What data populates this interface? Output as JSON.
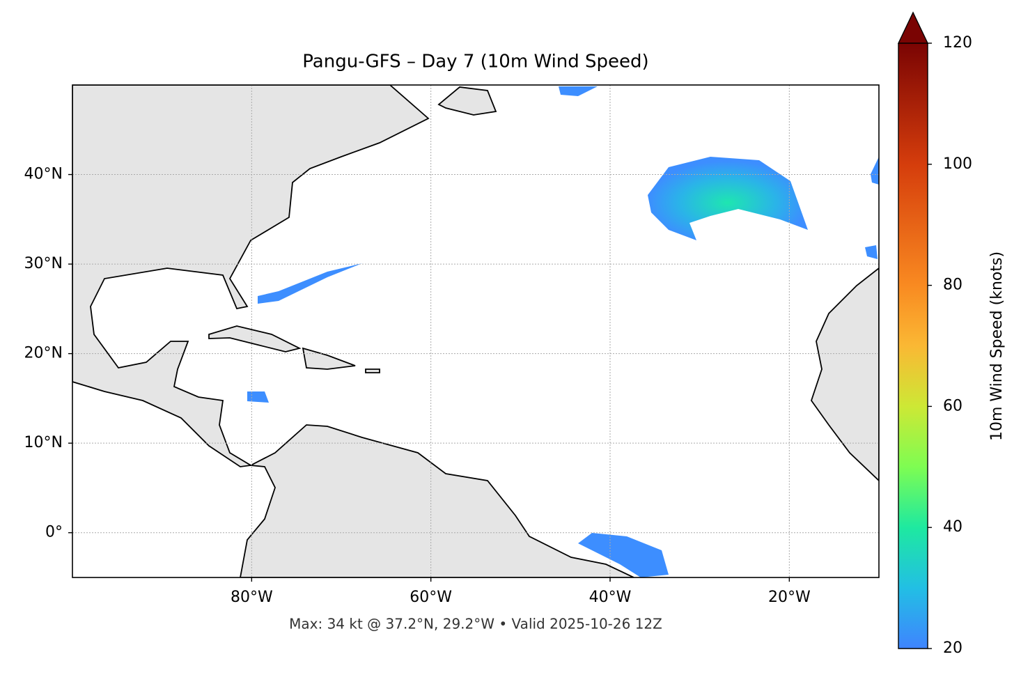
{
  "chart_data": {
    "type": "map",
    "title": "Pangu-GFS – Day 7 (10m Wind Speed)",
    "annotation": "Max: 34 kt @ 37.2°N, 29.2°W • Valid 2025-10-26 12Z",
    "xlim": [
      -100,
      -10
    ],
    "ylim": [
      -5,
      50
    ],
    "xticks": [
      {
        "value": -80,
        "label": "80°W"
      },
      {
        "value": -60,
        "label": "60°W"
      },
      {
        "value": -40,
        "label": "40°W"
      },
      {
        "value": -20,
        "label": "20°W"
      }
    ],
    "yticks": [
      {
        "value": 0,
        "label": "0°"
      },
      {
        "value": 10,
        "label": "10°N"
      },
      {
        "value": 20,
        "label": "20°N"
      },
      {
        "value": 30,
        "label": "30°N"
      },
      {
        "value": 40,
        "label": "40°N"
      }
    ],
    "grid": true,
    "colorbar": {
      "label": "10m Wind Speed (knots)",
      "lim": [
        20,
        120
      ],
      "ticks": [
        20,
        40,
        60,
        80,
        100,
        120
      ],
      "extend": "max"
    }
  }
}
